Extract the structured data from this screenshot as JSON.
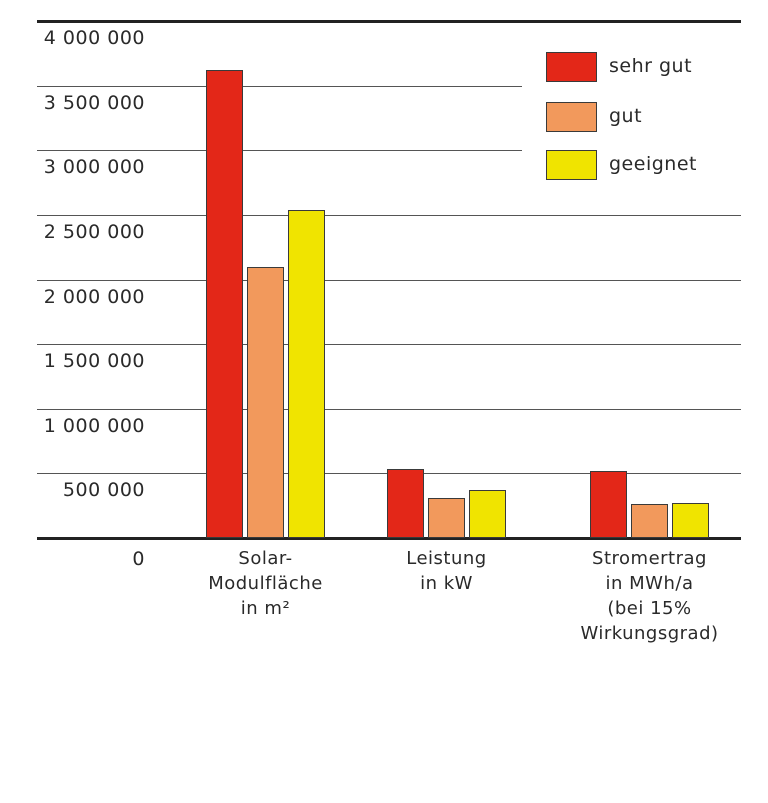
{
  "chart_data": {
    "type": "bar",
    "title": "",
    "xlabel": "",
    "ylabel": "",
    "ylim": [
      0,
      4000000
    ],
    "grid": true,
    "legend_position": "top-right",
    "y_ticks": [
      {
        "value": 0,
        "label": "0"
      },
      {
        "value": 500000,
        "label": "500 000"
      },
      {
        "value": 1000000,
        "label": "1 000 000"
      },
      {
        "value": 1500000,
        "label": "1 500 000"
      },
      {
        "value": 2000000,
        "label": "2 000 000"
      },
      {
        "value": 2500000,
        "label": "2 500 000"
      },
      {
        "value": 3000000,
        "label": "3 000 000"
      },
      {
        "value": 3500000,
        "label": "3 500 000"
      },
      {
        "value": 4000000,
        "label": "4 000 000"
      }
    ],
    "categories": [
      "Solar-\nModulfläche\nin m²",
      "Leistung\nin kW",
      "Stromertrag\nin MWh/a\n(bei 15%\nWirkungsgrad)"
    ],
    "series": [
      {
        "name": "sehr gut",
        "color": "#e32718",
        "values": [
          3620000,
          533000,
          518000
        ]
      },
      {
        "name": "gut",
        "color": "#f2995c",
        "values": [
          2100000,
          309000,
          263000
        ]
      },
      {
        "name": "geeignet",
        "color": "#f0e400",
        "values": [
          2535000,
          371000,
          270000
        ]
      }
    ]
  }
}
